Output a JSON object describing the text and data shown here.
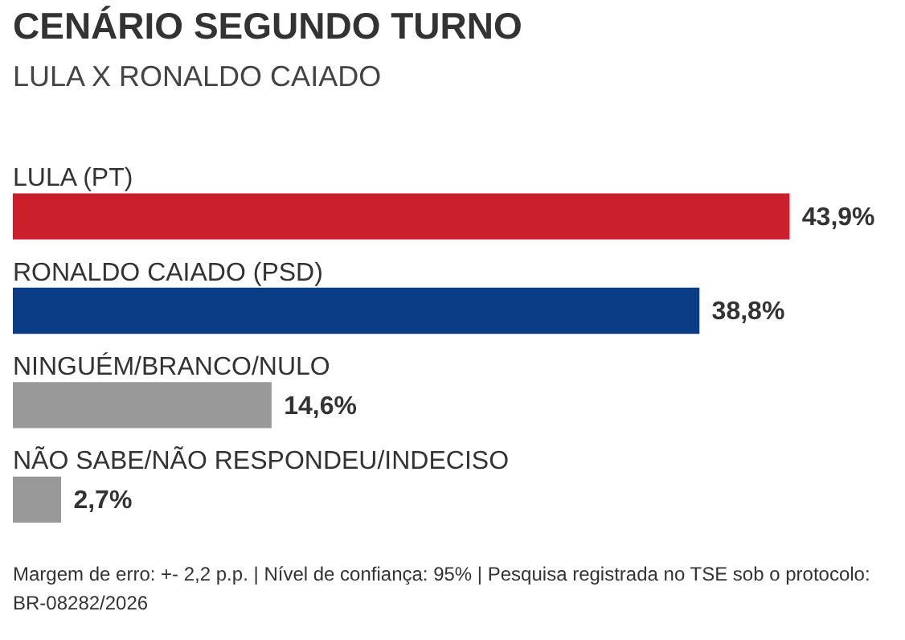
{
  "chart_data": {
    "type": "bar",
    "orientation": "horizontal",
    "title": "CENÁRIO SEGUNDO TURNO",
    "subtitle": "LULA X RONALDO CAIADO",
    "categories": [
      "LULA (PT)",
      "RONALDO CAIADO (PSD)",
      "NINGUÉM/BRANCO/NULO",
      "NÃO SABE/NÃO RESPONDEU/INDECISO"
    ],
    "values": [
      43.9,
      38.8,
      14.6,
      2.7
    ],
    "colors": [
      "#cc1f2c",
      "#0a3d85",
      "#999999",
      "#999999"
    ],
    "value_labels": [
      "43,9%",
      "38,8%",
      "14,6%",
      "2,7%"
    ],
    "tick_labels": "y",
    "legend": false,
    "annotations": [
      "Margem de erro: +- 2,2 p.p. | Nível de confiança: 95% | Pesquisa registrada no TSE sob o protocolo: BR-08282/2026"
    ]
  }
}
